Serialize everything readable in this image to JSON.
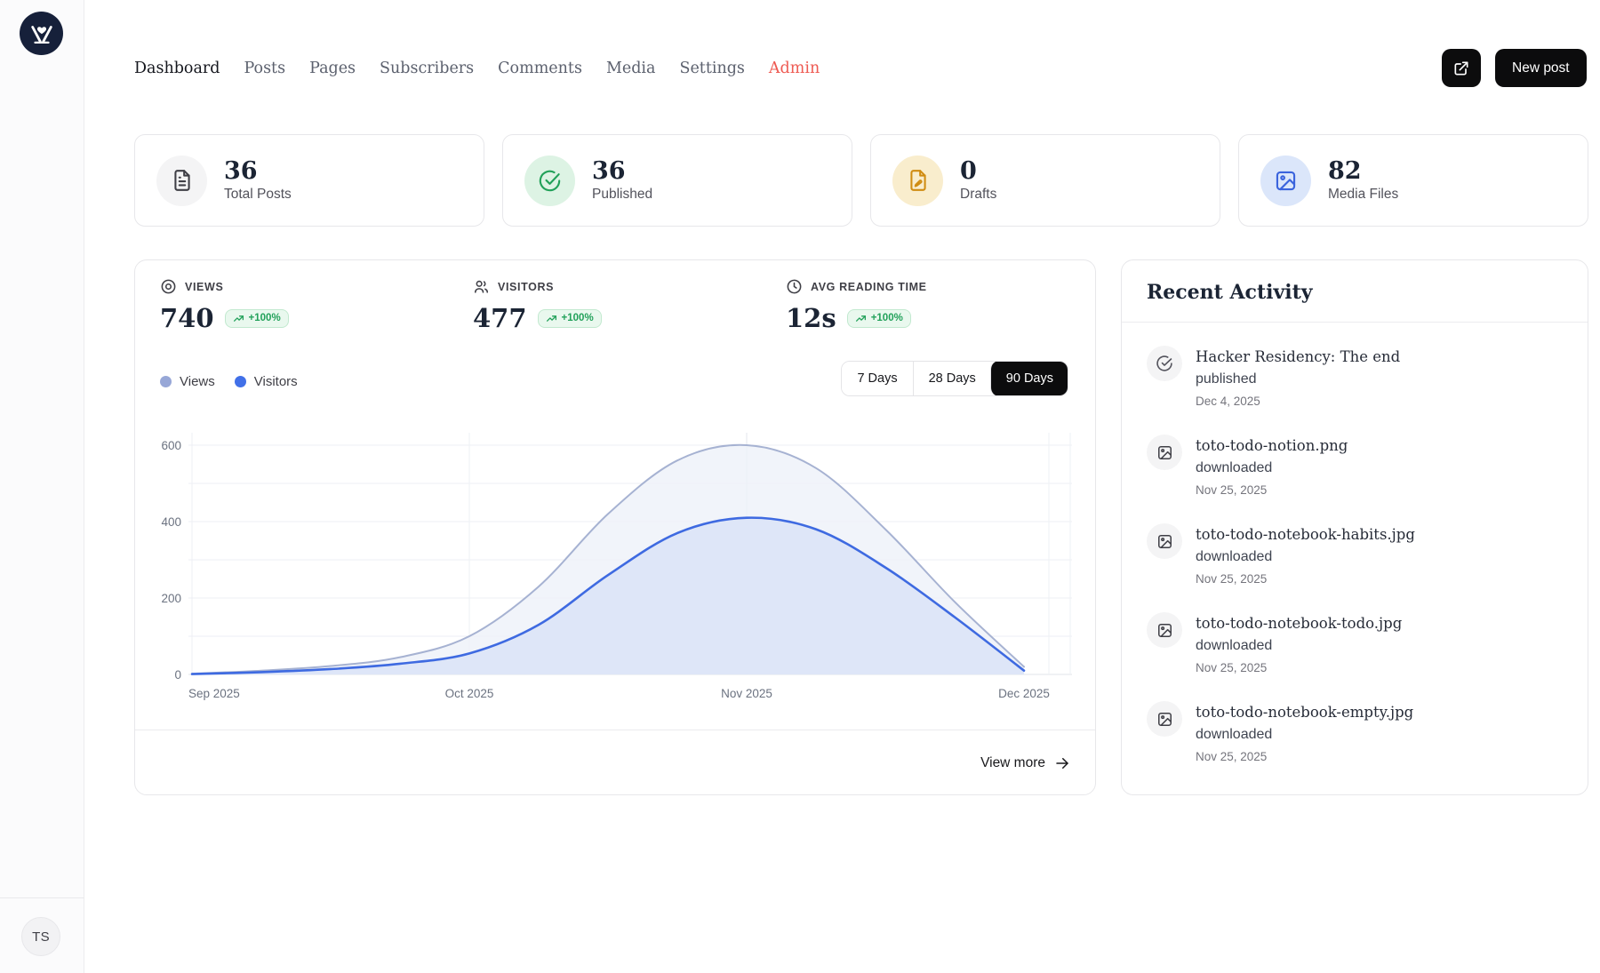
{
  "brand": {
    "avatar_initials": "TS"
  },
  "nav": {
    "items": [
      {
        "label": "Dashboard",
        "active": true
      },
      {
        "label": "Posts",
        "active": false
      },
      {
        "label": "Pages",
        "active": false
      },
      {
        "label": "Subscribers",
        "active": false
      },
      {
        "label": "Comments",
        "active": false
      },
      {
        "label": "Media",
        "active": false
      },
      {
        "label": "Settings",
        "active": false
      },
      {
        "label": "Admin",
        "active": false,
        "accent": true
      }
    ],
    "accent_color": "#ee5a52"
  },
  "header_actions": {
    "new_post_label": "New post"
  },
  "stat_cards": [
    {
      "value": "36",
      "label": "Total Posts",
      "icon": "document-icon",
      "icon_color": "#3f3f46",
      "circle_color": "#f4f4f5"
    },
    {
      "value": "36",
      "label": "Published",
      "icon": "check-circle-icon",
      "icon_color": "#22a159",
      "circle_color": "#ddf3e4"
    },
    {
      "value": "0",
      "label": "Drafts",
      "icon": "draft-icon",
      "icon_color": "#d08c12",
      "circle_color": "#f9edcd"
    },
    {
      "value": "82",
      "label": "Media Files",
      "icon": "image-icon",
      "icon_color": "#3b64dd",
      "circle_color": "#dbe6fa"
    }
  ],
  "analytics": {
    "metrics": [
      {
        "label": "VIEWS",
        "value": "740",
        "delta": "+100%",
        "icon": "views-icon"
      },
      {
        "label": "VISITORS",
        "value": "477",
        "delta": "+100%",
        "icon": "visitors-icon"
      },
      {
        "label": "AVG READING TIME",
        "value": "12s",
        "delta": "+100%",
        "icon": "clock-icon"
      }
    ],
    "legend": [
      {
        "label": "Views",
        "color": "#97a7d7"
      },
      {
        "label": "Visitors",
        "color": "#4170e8"
      }
    ],
    "range_buttons": [
      {
        "label": "7 Days",
        "active": false
      },
      {
        "label": "28 Days",
        "active": false
      },
      {
        "label": "90 Days",
        "active": true
      }
    ],
    "view_more_label": "View more"
  },
  "chart_data": {
    "type": "area",
    "title": "Views and Visitors over 90 days",
    "x_labels": [
      "Sep 2025",
      "Oct 2025",
      "Nov 2025",
      "Dec 2025"
    ],
    "x": [
      0,
      0.25,
      0.5,
      0.75,
      1,
      1.25,
      1.5,
      1.75,
      2,
      2.25,
      2.5,
      2.75,
      3
    ],
    "series": [
      {
        "name": "Views",
        "color": "#a6b2d2",
        "fill": "#eef1f9",
        "values": [
          2,
          10,
          22,
          45,
          100,
          230,
          420,
          560,
          600,
          540,
          380,
          190,
          20
        ]
      },
      {
        "name": "Visitors",
        "color": "#3e6ae1",
        "fill": "#dbe4f7",
        "values": [
          1,
          6,
          14,
          28,
          55,
          130,
          260,
          370,
          410,
          380,
          280,
          150,
          10
        ]
      }
    ],
    "ylim": [
      0,
      600
    ],
    "yticks": [
      0,
      200,
      400,
      600
    ],
    "grid_step": 100,
    "grid": true,
    "legend_position": "top-left"
  },
  "activity": {
    "title": "Recent Activity",
    "items": [
      {
        "icon": "check-circle-icon",
        "title": "Hacker Residency: The end",
        "status": "published",
        "date": "Dec 4, 2025"
      },
      {
        "icon": "image-icon",
        "title": "toto-todo-notion.png",
        "status": "downloaded",
        "date": "Nov 25, 2025"
      },
      {
        "icon": "image-icon",
        "title": "toto-todo-notebook-habits.jpg",
        "status": "downloaded",
        "date": "Nov 25, 2025"
      },
      {
        "icon": "image-icon",
        "title": "toto-todo-notebook-todo.jpg",
        "status": "downloaded",
        "date": "Nov 25, 2025"
      },
      {
        "icon": "image-icon",
        "title": "toto-todo-notebook-empty.jpg",
        "status": "downloaded",
        "date": "Nov 25, 2025"
      }
    ]
  }
}
